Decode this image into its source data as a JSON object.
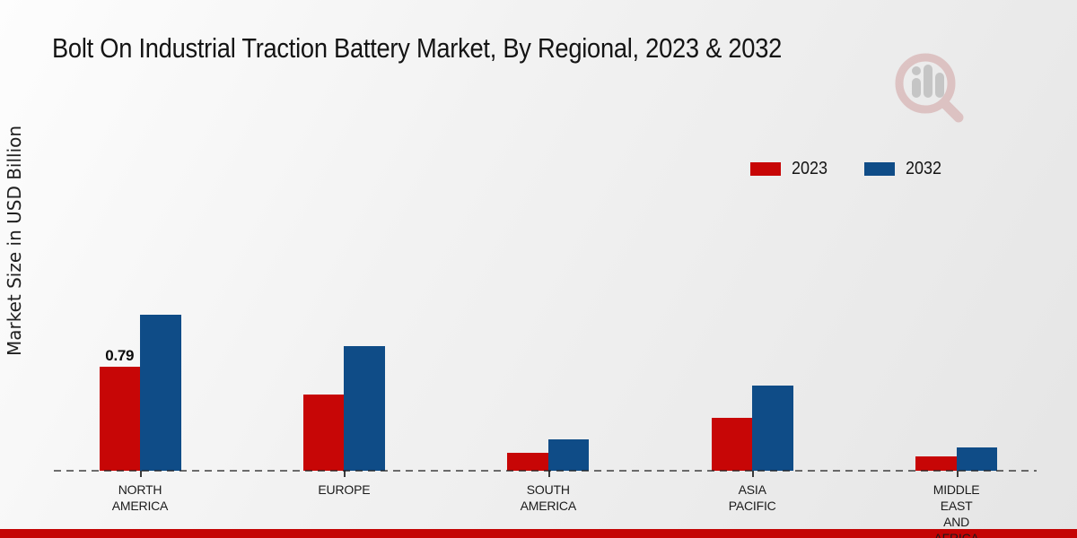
{
  "page": {
    "title": "Bolt On Industrial Traction Battery Market, By Regional, 2023 & 2032"
  },
  "chart_data": {
    "type": "bar",
    "title": "Bolt On Industrial Traction Battery Market, By Regional, 2023 & 2032",
    "xlabel": "",
    "ylabel": "Market Size in USD Billion",
    "categories": [
      "NORTH AMERICA",
      "EUROPE",
      "SOUTH AMERICA",
      "ASIA PACIFIC",
      "MIDDLE EAST AND AFRICA"
    ],
    "series": [
      {
        "name": "2023",
        "color": "#c70606",
        "values": [
          0.79,
          0.58,
          0.14,
          0.4,
          0.11
        ]
      },
      {
        "name": "2032",
        "color": "#0f4c87",
        "values": [
          1.19,
          0.95,
          0.24,
          0.65,
          0.18
        ]
      }
    ],
    "annotations": [
      {
        "series_index": 0,
        "category_index": 0,
        "text": "0.79"
      }
    ],
    "ylim": [
      0,
      1.3
    ],
    "grid": false,
    "legend_position": "upper right",
    "axis_style": "dashed-baseline-only"
  },
  "branding": {
    "watermark_icon": "magnifier-bar-chart-logo",
    "footer_bar_color": "#c40404"
  }
}
